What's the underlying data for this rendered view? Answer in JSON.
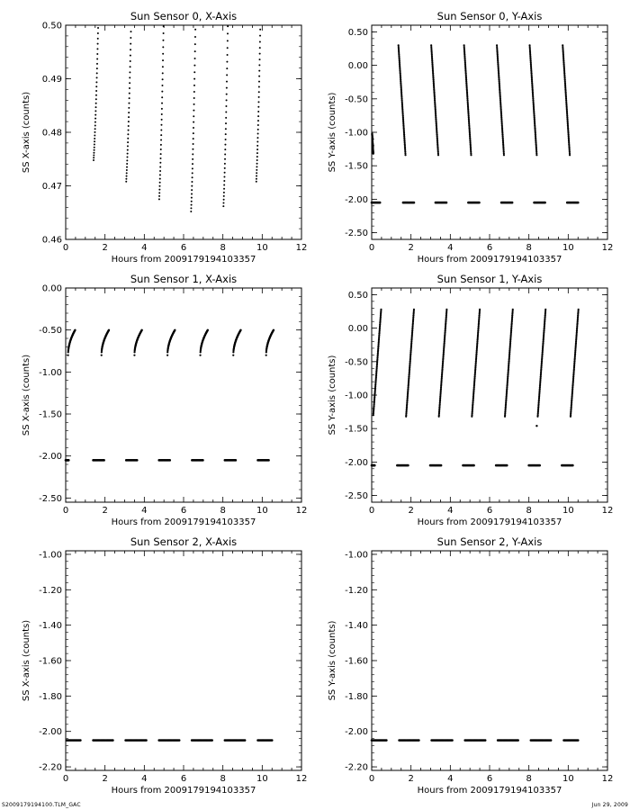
{
  "footer": {
    "filename": "S2009179194100.TLM_GAC",
    "date": "Jun 29, 2009"
  },
  "chart_data": [
    {
      "type": "scatter",
      "title": "Sun Sensor 0, X-Axis",
      "xlabel": "Hours from  2009179194103357",
      "ylabel": "SS X-axis (counts)",
      "xlim": [
        0,
        12
      ],
      "ylim": [
        0.46,
        0.5
      ],
      "xticks": [
        "0",
        "2",
        "4",
        "6",
        "8",
        "10",
        "12"
      ],
      "yticks": [
        "0.46",
        "0.47",
        "0.48",
        "0.49",
        "0.50"
      ],
      "yvals": [
        0.46,
        0.47,
        0.48,
        0.49,
        0.5
      ],
      "style": "sparse",
      "segments": [
        {
          "x0": 1.42,
          "x1": 1.65,
          "y0": 0.4748,
          "y1": 0.4995
        },
        {
          "x0": 3.08,
          "x1": 3.32,
          "y0": 0.4708,
          "y1": 0.4988
        },
        {
          "x0": 4.76,
          "x1": 4.98,
          "y0": 0.4675,
          "y1": 0.4998
        },
        {
          "x0": 6.38,
          "x1": 6.6,
          "y0": 0.4652,
          "y1": 0.4992
        },
        {
          "x0": 8.03,
          "x1": 8.25,
          "y0": 0.4662,
          "y1": 0.4998
        },
        {
          "x0": 9.7,
          "x1": 9.9,
          "y0": 0.4708,
          "y1": 0.4992
        }
      ],
      "flats": []
    },
    {
      "type": "scatter",
      "title": "Sun Sensor 0, Y-Axis",
      "xlabel": "Hours from  2009179194103357",
      "ylabel": "SS Y-axis (counts)",
      "xlim": [
        0,
        12
      ],
      "ylim": [
        -2.6,
        0.6
      ],
      "xticks": [
        "0",
        "2",
        "4",
        "6",
        "8",
        "10",
        "12"
      ],
      "yticks": [
        "-2.50",
        "-2.00",
        "-1.50",
        "-1.00",
        "-0.50",
        "0.00",
        "0.50"
      ],
      "yvals": [
        -2.5,
        -2.0,
        -1.5,
        -1.0,
        -0.5,
        0.0,
        0.5
      ],
      "style": "dense",
      "segments": [
        {
          "x0": 0.02,
          "x1": 0.08,
          "y0": -1.02,
          "y1": -1.32
        },
        {
          "x0": 1.36,
          "x1": 1.72,
          "y0": 0.3,
          "y1": -1.34
        },
        {
          "x0": 3.03,
          "x1": 3.39,
          "y0": 0.3,
          "y1": -1.34
        },
        {
          "x0": 4.7,
          "x1": 5.06,
          "y0": 0.3,
          "y1": -1.34
        },
        {
          "x0": 6.37,
          "x1": 6.73,
          "y0": 0.3,
          "y1": -1.34
        },
        {
          "x0": 8.04,
          "x1": 8.4,
          "y0": 0.3,
          "y1": -1.34
        },
        {
          "x0": 9.72,
          "x1": 10.08,
          "y0": 0.3,
          "y1": -1.34
        }
      ],
      "flats": [
        {
          "x0": 0.0,
          "x1": 0.42,
          "y": -2.05
        },
        {
          "x0": 1.6,
          "x1": 2.15,
          "y": -2.05
        },
        {
          "x0": 3.25,
          "x1": 3.8,
          "y": -2.05
        },
        {
          "x0": 4.92,
          "x1": 5.47,
          "y": -2.05
        },
        {
          "x0": 6.6,
          "x1": 7.15,
          "y": -2.05
        },
        {
          "x0": 8.27,
          "x1": 8.82,
          "y": -2.05
        },
        {
          "x0": 9.95,
          "x1": 10.5,
          "y": -2.05
        }
      ]
    },
    {
      "type": "scatter",
      "title": "Sun Sensor 1, X-Axis",
      "xlabel": "Hours from  2009179194103357",
      "ylabel": "SS X-axis (counts)",
      "xlim": [
        0,
        12
      ],
      "ylim": [
        -2.55,
        0.0
      ],
      "xticks": [
        "0",
        "2",
        "4",
        "6",
        "8",
        "10",
        "12"
      ],
      "yticks": [
        "-2.50",
        "-2.00",
        "-1.50",
        "-1.00",
        "-0.50",
        "0.00"
      ],
      "yvals": [
        -2.5,
        -2.0,
        -1.5,
        -1.0,
        -0.5,
        0.0
      ],
      "style": "curve",
      "segments": [
        {
          "x0": 0.12,
          "x1": 0.48,
          "y0": -0.8,
          "y1": -0.5
        },
        {
          "x0": 1.82,
          "x1": 2.2,
          "y0": -0.8,
          "y1": -0.5
        },
        {
          "x0": 3.5,
          "x1": 3.88,
          "y0": -0.8,
          "y1": -0.5
        },
        {
          "x0": 5.18,
          "x1": 5.56,
          "y0": -0.8,
          "y1": -0.5
        },
        {
          "x0": 6.85,
          "x1": 7.23,
          "y0": -0.8,
          "y1": -0.5
        },
        {
          "x0": 8.53,
          "x1": 8.91,
          "y0": -0.8,
          "y1": -0.5
        },
        {
          "x0": 10.2,
          "x1": 10.58,
          "y0": -0.8,
          "y1": -0.5
        }
      ],
      "flats": [
        {
          "x0": 0.0,
          "x1": 0.15,
          "y": -2.05
        },
        {
          "x0": 1.4,
          "x1": 1.95,
          "y": -2.05
        },
        {
          "x0": 3.08,
          "x1": 3.63,
          "y": -2.05
        },
        {
          "x0": 4.75,
          "x1": 5.3,
          "y": -2.05
        },
        {
          "x0": 6.43,
          "x1": 6.98,
          "y": -2.05
        },
        {
          "x0": 8.1,
          "x1": 8.65,
          "y": -2.05
        },
        {
          "x0": 9.78,
          "x1": 10.33,
          "y": -2.05
        }
      ]
    },
    {
      "type": "scatter",
      "title": "Sun Sensor 1, Y-Axis",
      "xlabel": "Hours from  2009179194103357",
      "ylabel": "SS Y-axis (counts)",
      "xlim": [
        0,
        12
      ],
      "ylim": [
        -2.6,
        0.6
      ],
      "xticks": [
        "0",
        "2",
        "4",
        "6",
        "8",
        "10",
        "12"
      ],
      "yticks": [
        "-2.50",
        "-2.00",
        "-1.50",
        "-1.00",
        "-0.50",
        "0.00",
        "0.50"
      ],
      "yvals": [
        -2.5,
        -2.0,
        -1.5,
        -1.0,
        -0.5,
        0.0,
        0.5
      ],
      "style": "dense",
      "segments": [
        {
          "x0": 0.08,
          "x1": 0.48,
          "y0": -1.3,
          "y1": 0.28
        },
        {
          "x0": 1.75,
          "x1": 2.15,
          "y0": -1.32,
          "y1": 0.28
        },
        {
          "x0": 3.42,
          "x1": 3.82,
          "y0": -1.32,
          "y1": 0.28
        },
        {
          "x0": 5.1,
          "x1": 5.5,
          "y0": -1.32,
          "y1": 0.28
        },
        {
          "x0": 6.78,
          "x1": 7.18,
          "y0": -1.32,
          "y1": 0.28
        },
        {
          "x0": 8.45,
          "x1": 8.85,
          "y0": -1.32,
          "y1": 0.28
        },
        {
          "x0": 10.12,
          "x1": 10.52,
          "y0": -1.32,
          "y1": 0.28
        }
      ],
      "flats": [
        {
          "x0": 0.0,
          "x1": 0.15,
          "y": -2.05
        },
        {
          "x0": 1.3,
          "x1": 1.85,
          "y": -2.05
        },
        {
          "x0": 2.98,
          "x1": 3.53,
          "y": -2.05
        },
        {
          "x0": 4.65,
          "x1": 5.2,
          "y": -2.05
        },
        {
          "x0": 6.33,
          "x1": 6.88,
          "y": -2.05
        },
        {
          "x0": 8.0,
          "x1": 8.55,
          "y": -2.05
        },
        {
          "x0": 9.68,
          "x1": 10.23,
          "y": -2.05
        }
      ],
      "outliers": [
        {
          "x": 8.4,
          "y": -1.46
        }
      ]
    },
    {
      "type": "scatter",
      "title": "Sun Sensor 2, X-Axis",
      "xlabel": "Hours from  2009179194103357",
      "ylabel": "SS X-axis (counts)",
      "xlim": [
        0,
        12
      ],
      "ylim": [
        -2.22,
        -0.98
      ],
      "xticks": [
        "0",
        "2",
        "4",
        "6",
        "8",
        "10",
        "12"
      ],
      "yticks": [
        "-2.20",
        "-2.00",
        "-1.80",
        "-1.60",
        "-1.40",
        "-1.20",
        "-1.00"
      ],
      "yvals": [
        -2.2,
        -2.0,
        -1.8,
        -1.6,
        -1.4,
        -1.2,
        -1.0
      ],
      "style": "dense",
      "segments": [],
      "flats": [
        {
          "x0": 0.05,
          "x1": 0.75,
          "y": -2.05
        },
        {
          "x0": 1.4,
          "x1": 2.4,
          "y": -2.05
        },
        {
          "x0": 3.05,
          "x1": 4.1,
          "y": -2.05
        },
        {
          "x0": 4.75,
          "x1": 5.78,
          "y": -2.05
        },
        {
          "x0": 6.42,
          "x1": 7.45,
          "y": -2.05
        },
        {
          "x0": 8.1,
          "x1": 9.12,
          "y": -2.05
        },
        {
          "x0": 9.78,
          "x1": 10.5,
          "y": -2.05
        }
      ]
    },
    {
      "type": "scatter",
      "title": "Sun Sensor 2, Y-Axis",
      "xlabel": "Hours from  2009179194103357",
      "ylabel": "SS Y-axis (counts)",
      "xlim": [
        0,
        12
      ],
      "ylim": [
        -2.22,
        -0.98
      ],
      "xticks": [
        "0",
        "2",
        "4",
        "6",
        "8",
        "10",
        "12"
      ],
      "yticks": [
        "-2.20",
        "-2.00",
        "-1.80",
        "-1.60",
        "-1.40",
        "-1.20",
        "-1.00"
      ],
      "yvals": [
        -2.2,
        -2.0,
        -1.8,
        -1.6,
        -1.4,
        -1.2,
        -1.0
      ],
      "style": "dense",
      "segments": [],
      "flats": [
        {
          "x0": 0.0,
          "x1": 0.75,
          "y": -2.05
        },
        {
          "x0": 1.4,
          "x1": 2.4,
          "y": -2.05
        },
        {
          "x0": 3.05,
          "x1": 4.1,
          "y": -2.05
        },
        {
          "x0": 4.75,
          "x1": 5.78,
          "y": -2.05
        },
        {
          "x0": 6.42,
          "x1": 7.45,
          "y": -2.05
        },
        {
          "x0": 8.1,
          "x1": 9.12,
          "y": -2.05
        },
        {
          "x0": 9.78,
          "x1": 10.5,
          "y": -2.05
        }
      ]
    }
  ]
}
